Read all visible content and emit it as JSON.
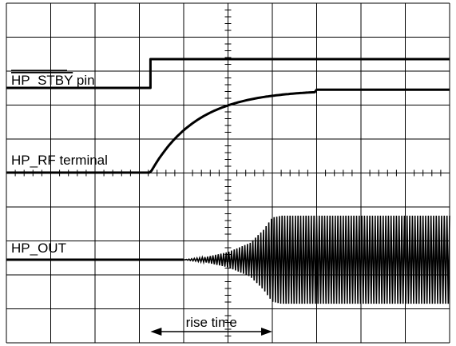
{
  "chart_data": {
    "type": "line",
    "grid": true,
    "grid_divisions": {
      "x": 10,
      "y": 10
    },
    "labels": {
      "stby_prefix": "HP_STBY",
      "stby_suffix": " pin",
      "rf": "HP_RF terminal",
      "out": "HP_OUT",
      "rise_time": "rise time"
    },
    "series": [
      {
        "name": "HP_STBY pin",
        "x": [
          0,
          3.25,
          3.25,
          10
        ],
        "y": [
          1,
          1,
          2,
          2
        ]
      },
      {
        "name": "HP_RF terminal",
        "x": [
          0,
          3.25,
          3.6,
          4.0,
          4.5,
          5.0,
          5.5,
          6.0,
          6.5,
          7.0,
          10
        ],
        "y": [
          -0.2,
          -0.2,
          0.22,
          0.55,
          0.85,
          1.05,
          1.16,
          1.22,
          1.24,
          1.24,
          1.24
        ]
      },
      {
        "name": "HP_OUT",
        "envelope_x": [
          0,
          4.0,
          4.5,
          5.0,
          5.5,
          5.8,
          6.0,
          6.2,
          10
        ],
        "envelope_amplitude": [
          0,
          0,
          0.1,
          0.28,
          0.62,
          1.1,
          1.55,
          1.62,
          1.62
        ],
        "center_y": 0
      }
    ],
    "rise_time": {
      "start": 3.25,
      "end": 6.0
    }
  }
}
